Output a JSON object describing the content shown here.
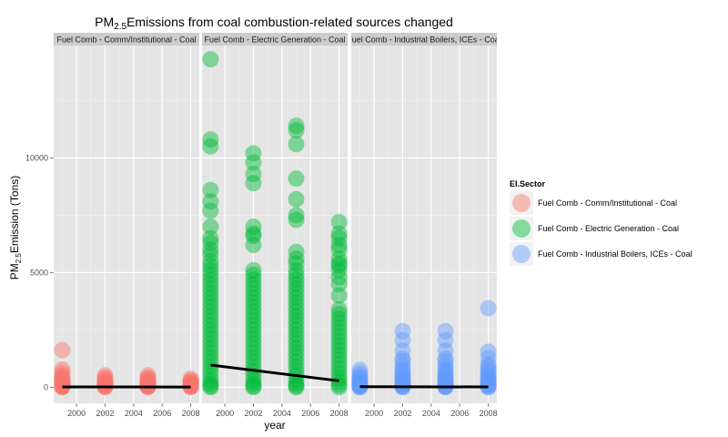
{
  "chart_data": {
    "type": "scatter",
    "title_prefix": "PM",
    "title_sub": "2.5",
    "title_suffix": "Emissions from coal combustion-related sources changed",
    "xlabel": "year",
    "ylabel_prefix": "PM",
    "ylabel_sub": "2.5",
    "ylabel_suffix": "Emission (Tons)",
    "xlim": [
      1998.4,
      2008.6
    ],
    "ylim": [
      -700,
      14900
    ],
    "x_ticks": [
      2000,
      2002,
      2004,
      2006,
      2008
    ],
    "y_ticks": [
      0,
      5000,
      10000
    ],
    "legend_title": "EI.Sector",
    "legend_position": "right",
    "grid": true,
    "panels": [
      {
        "label": "Fuel Comb - Comm/Institutional - Coal",
        "color": "#F8766D",
        "points": [
          {
            "year": 1999,
            "values": [
              1620,
              780,
              640,
              520,
              440,
              380,
              330,
              290,
              250,
              210,
              180,
              150,
              120,
              100,
              80,
              60,
              40,
              25,
              10,
              0
            ]
          },
          {
            "year": 2002,
            "values": [
              520,
              420,
              350,
              300,
              260,
              220,
              190,
              160,
              130,
              100,
              80,
              60,
              40,
              20,
              5
            ]
          },
          {
            "year": 2005,
            "values": [
              520,
              430,
              350,
              300,
              260,
              220,
              180,
              150,
              120,
              90,
              70,
              50,
              30,
              15,
              5
            ]
          },
          {
            "year": 2008,
            "values": [
              380,
              300,
              250,
              210,
              170,
              140,
              110,
              80,
              60,
              40,
              20,
              5
            ]
          }
        ],
        "trend": [
          {
            "year": 1999,
            "value": 15
          },
          {
            "year": 2008,
            "value": 10
          }
        ]
      },
      {
        "label": "Fuel Comb - Electric Generation - Coal",
        "color": "#00BA38",
        "points": [
          {
            "year": 1999,
            "values": [
              14300,
              10800,
              10500,
              8600,
              8100,
              7700,
              7000,
              6500,
              6300,
              6000,
              5800,
              5500,
              5300,
              5100,
              4900,
              4700,
              4500,
              4300,
              4100,
              3900,
              3700,
              3500,
              3300,
              3100,
              2900,
              2700,
              2500,
              2300,
              2100,
              1900,
              1700,
              1500,
              1300,
              1100,
              900,
              700,
              500,
              300,
              150,
              50,
              0
            ]
          },
          {
            "year": 2002,
            "values": [
              10200,
              9800,
              9300,
              8900,
              7000,
              6700,
              6600,
              6200,
              5100,
              4900,
              4700,
              4500,
              4300,
              4100,
              3900,
              3700,
              3500,
              3300,
              3100,
              2900,
              2700,
              2500,
              2300,
              2100,
              1900,
              1700,
              1500,
              1300,
              1100,
              900,
              700,
              500,
              300,
              150,
              50,
              0
            ]
          },
          {
            "year": 2005,
            "values": [
              11400,
              11200,
              10600,
              9100,
              8200,
              7500,
              7300,
              5900,
              5600,
              5400,
              5100,
              4900,
              4700,
              4500,
              4300,
              4100,
              3900,
              3700,
              3500,
              3300,
              3100,
              2900,
              2700,
              2500,
              2300,
              2100,
              1900,
              1700,
              1500,
              1300,
              1100,
              900,
              700,
              500,
              300,
              150,
              50,
              0
            ]
          },
          {
            "year": 2008,
            "values": [
              7200,
              6700,
              6500,
              6200,
              6000,
              5600,
              5400,
              5300,
              5100,
              4800,
              4500,
              4000,
              3400,
              3200,
              3000,
              2800,
              2600,
              2400,
              2200,
              2000,
              1800,
              1600,
              1400,
              1200,
              1000,
              800,
              600,
              400,
              250,
              100,
              0
            ]
          }
        ],
        "trend": [
          {
            "year": 1999,
            "value": 970
          },
          {
            "year": 2008,
            "value": 280
          }
        ]
      },
      {
        "label": "Fuel Comb - Industrial Boilers, ICEs - Coal",
        "color": "#619CFF",
        "points": [
          {
            "year": 1999,
            "values": [
              760,
              600,
              500,
              420,
              350,
              290,
              240,
              190,
              150,
              110,
              80,
              50,
              30,
              10,
              0
            ]
          },
          {
            "year": 2002,
            "values": [
              2450,
              2050,
              1600,
              1250,
              1150,
              950,
              820,
              700,
              600,
              500,
              420,
              350,
              280,
              220,
              160,
              110,
              70,
              40,
              15,
              0
            ]
          },
          {
            "year": 2005,
            "values": [
              2450,
              2050,
              1600,
              1250,
              1150,
              950,
              820,
              700,
              600,
              500,
              420,
              350,
              280,
              220,
              160,
              110,
              70,
              40,
              15,
              0
            ]
          },
          {
            "year": 2008,
            "values": [
              3450,
              1550,
              1280,
              1000,
              880,
              760,
              650,
              550,
              460,
              380,
              310,
              250,
              190,
              140,
              90,
              50,
              20,
              0
            ]
          }
        ],
        "trend": [
          {
            "year": 1999,
            "value": 25
          },
          {
            "year": 2008,
            "value": 15
          }
        ]
      }
    ]
  }
}
